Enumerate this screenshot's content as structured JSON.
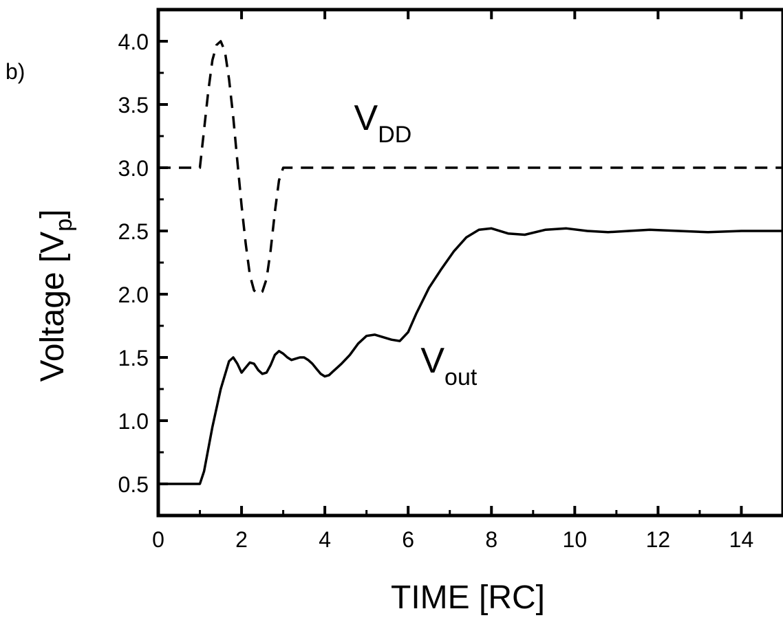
{
  "panel_label": "b)",
  "chart_data": {
    "type": "line",
    "title": "",
    "xlabel": "TIME [RC]",
    "ylabel_main": "Voltage [V",
    "ylabel_sub": "p",
    "ylabel_close": "]",
    "xlim": [
      0,
      15
    ],
    "ylim": [
      0.25,
      4.25
    ],
    "x_ticks": [
      0,
      2,
      4,
      6,
      8,
      10,
      12,
      14
    ],
    "x_tick_labels": [
      "0",
      "2",
      "4",
      "6",
      "8",
      "10",
      "12",
      "14"
    ],
    "y_ticks": [
      0.5,
      1.0,
      1.5,
      2.0,
      2.5,
      3.0,
      3.5,
      4.0
    ],
    "y_tick_labels": [
      "0.5",
      "1.0",
      "1.5",
      "2.0",
      "2.5",
      "3.0",
      "3.5",
      "4.0"
    ],
    "grid": false,
    "series": [
      {
        "label_main": "V",
        "label_sub": "DD",
        "label_at": [
          4.7,
          3.3
        ],
        "style": "dashed",
        "x": [
          0,
          1.0,
          1.1,
          1.2,
          1.3,
          1.4,
          1.5,
          1.6,
          1.7,
          1.8,
          1.9,
          2.0,
          2.1,
          2.2,
          2.3,
          2.4,
          2.5,
          2.6,
          2.7,
          2.8,
          2.9,
          3.0,
          15
        ],
        "values": [
          3.0,
          3.0,
          3.3,
          3.6,
          3.85,
          3.97,
          4.0,
          3.92,
          3.7,
          3.4,
          3.05,
          2.7,
          2.4,
          2.15,
          2.03,
          2.0,
          2.02,
          2.12,
          2.35,
          2.65,
          2.9,
          3.0,
          3.0
        ]
      },
      {
        "label_main": "V",
        "label_sub": "out",
        "label_at": [
          6.3,
          1.38
        ],
        "style": "solid",
        "x": [
          0,
          1.0,
          1.1,
          1.3,
          1.5,
          1.7,
          1.8,
          1.9,
          2.0,
          2.1,
          2.2,
          2.3,
          2.4,
          2.5,
          2.6,
          2.7,
          2.8,
          2.9,
          3.0,
          3.1,
          3.2,
          3.3,
          3.4,
          3.5,
          3.6,
          3.7,
          3.8,
          3.9,
          4.0,
          4.1,
          4.2,
          4.3,
          4.4,
          4.6,
          4.8,
          5.0,
          5.2,
          5.4,
          5.6,
          5.8,
          6.0,
          6.2,
          6.5,
          6.8,
          7.1,
          7.4,
          7.7,
          8.0,
          8.4,
          8.8,
          9.3,
          9.8,
          10.3,
          10.8,
          11.3,
          11.8,
          12.5,
          13.2,
          14.0,
          15.0
        ],
        "values": [
          0.5,
          0.5,
          0.6,
          0.95,
          1.25,
          1.47,
          1.5,
          1.45,
          1.38,
          1.42,
          1.46,
          1.45,
          1.4,
          1.37,
          1.38,
          1.44,
          1.52,
          1.55,
          1.53,
          1.5,
          1.48,
          1.49,
          1.5,
          1.5,
          1.48,
          1.45,
          1.41,
          1.37,
          1.35,
          1.36,
          1.39,
          1.42,
          1.45,
          1.52,
          1.61,
          1.67,
          1.68,
          1.66,
          1.64,
          1.63,
          1.7,
          1.85,
          2.05,
          2.2,
          2.34,
          2.45,
          2.51,
          2.52,
          2.48,
          2.47,
          2.51,
          2.52,
          2.5,
          2.49,
          2.5,
          2.51,
          2.5,
          2.49,
          2.5,
          2.5
        ]
      }
    ]
  }
}
